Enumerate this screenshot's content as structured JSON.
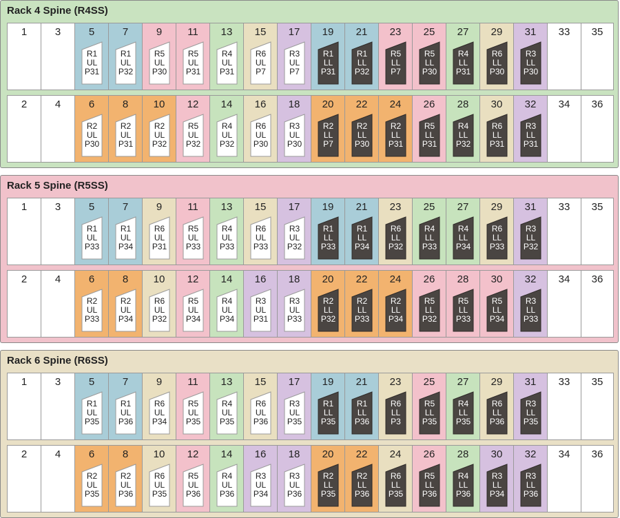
{
  "colors": {
    "R1": "#a9cdd8",
    "R2": "#f2b36f",
    "R3": "#d6c1e0",
    "R4": "#c7e3bd",
    "R5": "#f3c1cb",
    "R6": "#e9dfc0",
    "UL_tab": "#ffffff",
    "LL_tab": "#4a4542",
    "rack_bg": {
      "R4SS": "#c9e3c0",
      "R5SS": "#f1c2cb",
      "R6SS": "#e9e0c6"
    }
  },
  "racks": [
    {
      "id": "R4SS",
      "title": "Rack 4 Spine (R4SS)",
      "rows": [
        [
          {
            "n": "1"
          },
          {
            "n": "3"
          },
          {
            "n": "5",
            "r": "R1",
            "l": "UL",
            "p": "P31"
          },
          {
            "n": "7",
            "r": "R1",
            "l": "UL",
            "p": "P32"
          },
          {
            "n": "9",
            "r": "R5",
            "l": "UL",
            "p": "P30"
          },
          {
            "n": "11",
            "r": "R5",
            "l": "UL",
            "p": "P31"
          },
          {
            "n": "13",
            "r": "R4",
            "l": "UL",
            "p": "P31"
          },
          {
            "n": "15",
            "r": "R6",
            "l": "UL",
            "p": "P7"
          },
          {
            "n": "17",
            "r": "R3",
            "l": "UL",
            "p": "P7"
          },
          {
            "n": "19",
            "r": "R1",
            "l": "LL",
            "p": "P31"
          },
          {
            "n": "21",
            "r": "R1",
            "l": "LL",
            "p": "P32"
          },
          {
            "n": "23",
            "r": "R5",
            "l": "LL",
            "p": "P7"
          },
          {
            "n": "25",
            "r": "R5",
            "l": "LL",
            "p": "P30"
          },
          {
            "n": "27",
            "r": "R4",
            "l": "LL",
            "p": "P31"
          },
          {
            "n": "29",
            "r": "R6",
            "l": "LL",
            "p": "P30"
          },
          {
            "n": "31",
            "r": "R3",
            "l": "LL",
            "p": "P30"
          },
          {
            "n": "33"
          },
          {
            "n": "35"
          }
        ],
        [
          {
            "n": "2"
          },
          {
            "n": "4"
          },
          {
            "n": "6",
            "r": "R2",
            "l": "UL",
            "p": "P30"
          },
          {
            "n": "8",
            "r": "R2",
            "l": "UL",
            "p": "P31"
          },
          {
            "n": "10",
            "r": "R2",
            "l": "UL",
            "p": "P32"
          },
          {
            "n": "12",
            "r": "R5",
            "l": "UL",
            "p": "P32"
          },
          {
            "n": "14",
            "r": "R4",
            "l": "UL",
            "p": "P32"
          },
          {
            "n": "16",
            "r": "R6",
            "l": "UL",
            "p": "P30"
          },
          {
            "n": "18",
            "r": "R3",
            "l": "UL",
            "p": "P30"
          },
          {
            "n": "20",
            "r": "R2",
            "l": "LL",
            "p": "P7"
          },
          {
            "n": "22",
            "r": "R2",
            "l": "LL",
            "p": "P30"
          },
          {
            "n": "24",
            "r": "R2",
            "l": "LL",
            "p": "P31"
          },
          {
            "n": "26",
            "r": "R5",
            "l": "LL",
            "p": "P31"
          },
          {
            "n": "28",
            "r": "R4",
            "l": "LL",
            "p": "P32"
          },
          {
            "n": "30",
            "r": "R6",
            "l": "LL",
            "p": "P31"
          },
          {
            "n": "32",
            "r": "R3",
            "l": "LL",
            "p": "P31"
          },
          {
            "n": "34"
          },
          {
            "n": "36"
          }
        ]
      ]
    },
    {
      "id": "R5SS",
      "title": "Rack 5 Spine (R5SS)",
      "rows": [
        [
          {
            "n": "1"
          },
          {
            "n": "3"
          },
          {
            "n": "5",
            "r": "R1",
            "l": "UL",
            "p": "P33"
          },
          {
            "n": "7",
            "r": "R1",
            "l": "UL",
            "p": "P34"
          },
          {
            "n": "9",
            "r": "R6",
            "l": "UL",
            "p": "P31"
          },
          {
            "n": "11",
            "r": "R5",
            "l": "UL",
            "p": "P33"
          },
          {
            "n": "13",
            "r": "R4",
            "l": "UL",
            "p": "P33"
          },
          {
            "n": "15",
            "r": "R6",
            "l": "UL",
            "p": "P33"
          },
          {
            "n": "17",
            "r": "R3",
            "l": "UL",
            "p": "P32"
          },
          {
            "n": "19",
            "r": "R1",
            "l": "LL",
            "p": "P33"
          },
          {
            "n": "21",
            "r": "R1",
            "l": "LL",
            "p": "P34"
          },
          {
            "n": "23",
            "r": "R6",
            "l": "LL",
            "p": "P32"
          },
          {
            "n": "25",
            "r": "R4",
            "l": "LL",
            "p": "P33"
          },
          {
            "n": "27",
            "r": "R4",
            "l": "LL",
            "p": "P34"
          },
          {
            "n": "29",
            "r": "R6",
            "l": "LL",
            "p": "P33"
          },
          {
            "n": "31",
            "r": "R3",
            "l": "LL",
            "p": "P32"
          },
          {
            "n": "33"
          },
          {
            "n": "35"
          }
        ],
        [
          {
            "n": "2"
          },
          {
            "n": "4"
          },
          {
            "n": "6",
            "r": "R2",
            "l": "UL",
            "p": "P33"
          },
          {
            "n": "8",
            "r": "R2",
            "l": "UL",
            "p": "P34"
          },
          {
            "n": "10",
            "r": "R6",
            "l": "UL",
            "p": "P32"
          },
          {
            "n": "12",
            "r": "R5",
            "l": "UL",
            "p": "P34"
          },
          {
            "n": "14",
            "r": "R4",
            "l": "UL",
            "p": "P34"
          },
          {
            "n": "16",
            "r": "R3",
            "l": "UL",
            "p": "P31"
          },
          {
            "n": "18",
            "r": "R3",
            "l": "UL",
            "p": "P33"
          },
          {
            "n": "20",
            "r": "R2",
            "l": "LL",
            "p": "P32"
          },
          {
            "n": "22",
            "r": "R2",
            "l": "LL",
            "p": "P33"
          },
          {
            "n": "24",
            "r": "R2",
            "l": "LL",
            "p": "P34"
          },
          {
            "n": "26",
            "r": "R5",
            "l": "LL",
            "p": "P32"
          },
          {
            "n": "28",
            "r": "R5",
            "l": "LL",
            "p": "P33"
          },
          {
            "n": "30",
            "r": "R5",
            "l": "LL",
            "p": "P34"
          },
          {
            "n": "32",
            "r": "R3",
            "l": "LL",
            "p": "P33"
          },
          {
            "n": "34"
          },
          {
            "n": "36"
          }
        ]
      ]
    },
    {
      "id": "R6SS",
      "title": "Rack 6 Spine (R6SS)",
      "rows": [
        [
          {
            "n": "1"
          },
          {
            "n": "3"
          },
          {
            "n": "5",
            "r": "R1",
            "l": "UL",
            "p": "P35"
          },
          {
            "n": "7",
            "r": "R1",
            "l": "UL",
            "p": "P36"
          },
          {
            "n": "9",
            "r": "R6",
            "l": "UL",
            "p": "P34"
          },
          {
            "n": "11",
            "r": "R5",
            "l": "UL",
            "p": "P35"
          },
          {
            "n": "13",
            "r": "R4",
            "l": "UL",
            "p": "P35"
          },
          {
            "n": "15",
            "r": "R6",
            "l": "UL",
            "p": "P36"
          },
          {
            "n": "17",
            "r": "R3",
            "l": "UL",
            "p": "P35"
          },
          {
            "n": "19",
            "r": "R1",
            "l": "LL",
            "p": "P35"
          },
          {
            "n": "21",
            "r": "R1",
            "l": "LL",
            "p": "P36"
          },
          {
            "n": "23",
            "r": "R6",
            "l": "LL",
            "p": "P3"
          },
          {
            "n": "25",
            "r": "R5",
            "l": "LL",
            "p": "P35"
          },
          {
            "n": "27",
            "r": "R4",
            "l": "LL",
            "p": "P35"
          },
          {
            "n": "29",
            "r": "R6",
            "l": "LL",
            "p": "P36"
          },
          {
            "n": "31",
            "r": "R3",
            "l": "LL",
            "p": "P35"
          },
          {
            "n": "33"
          },
          {
            "n": "35"
          }
        ],
        [
          {
            "n": "2"
          },
          {
            "n": "4"
          },
          {
            "n": "6",
            "r": "R2",
            "l": "UL",
            "p": "P35"
          },
          {
            "n": "8",
            "r": "R2",
            "l": "UL",
            "p": "P36"
          },
          {
            "n": "10",
            "r": "R6",
            "l": "UL",
            "p": "P35"
          },
          {
            "n": "12",
            "r": "R5",
            "l": "UL",
            "p": "P36"
          },
          {
            "n": "14",
            "r": "R4",
            "l": "UL",
            "p": "P36"
          },
          {
            "n": "16",
            "r": "R3",
            "l": "UL",
            "p": "P34"
          },
          {
            "n": "18",
            "r": "R3",
            "l": "UL",
            "p": "P36"
          },
          {
            "n": "20",
            "r": "R2",
            "l": "LL",
            "p": "P35"
          },
          {
            "n": "22",
            "r": "R2",
            "l": "LL",
            "p": "P36"
          },
          {
            "n": "24",
            "r": "R6",
            "l": "LL",
            "p": "P35"
          },
          {
            "n": "26",
            "r": "R5",
            "l": "LL",
            "p": "P36"
          },
          {
            "n": "28",
            "r": "R4",
            "l": "LL",
            "p": "P36"
          },
          {
            "n": "30",
            "r": "R3",
            "l": "LL",
            "p": "P34"
          },
          {
            "n": "32",
            "r": "R3",
            "l": "LL",
            "p": "P36"
          },
          {
            "n": "34"
          },
          {
            "n": "36"
          }
        ]
      ]
    }
  ]
}
